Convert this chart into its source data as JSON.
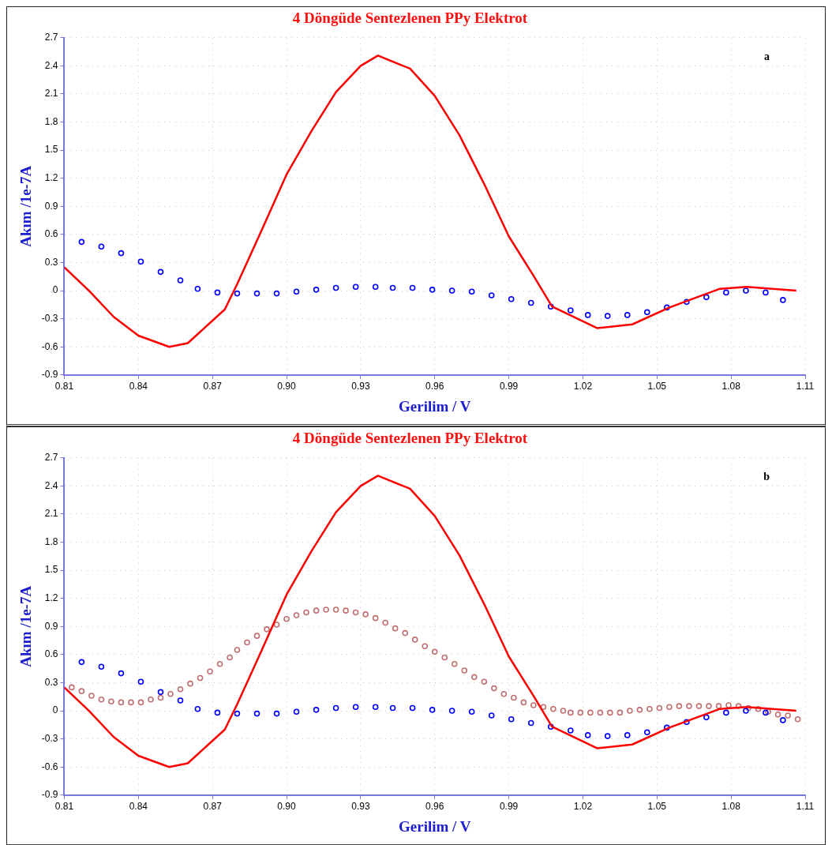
{
  "chart_data": [
    {
      "type": "line",
      "title": "4 Döngüde Sentezlenen PPy Elektrot",
      "xlabel": "Gerilim / V",
      "ylabel": "Akım /1e-7A",
      "annotations": [
        "a"
      ],
      "grid": true,
      "legend": false,
      "xlim": [
        0.81,
        1.11
      ],
      "xticks": [
        0.81,
        0.84,
        0.87,
        {
          "value": 0.9,
          "label": "0.90"
        },
        0.93,
        0.96,
        0.99,
        1.02,
        1.05,
        1.08,
        1.11
      ],
      "ylim": [
        -0.9,
        2.7
      ],
      "yticks": [
        -0.9,
        -0.6,
        -0.3,
        0,
        0.3,
        0.6,
        0.9,
        1.2,
        1.5,
        1.8,
        2.1,
        2.4,
        2.7
      ],
      "series": [
        {
          "type": "line",
          "color": "#ff0000",
          "line_style": "solid",
          "marker": "none",
          "x": [
            0.81,
            0.82,
            0.83,
            0.84,
            0.8525,
            0.86,
            0.87,
            0.875,
            0.88,
            0.89,
            0.9,
            0.91,
            0.92,
            0.93,
            0.937,
            0.95,
            0.96,
            0.97,
            0.98,
            0.99,
            1.0,
            1.0075,
            1.0257,
            1.04,
            1.055,
            1.0755,
            1.0863,
            1.1064
          ],
          "values": [
            0.25,
            0.0,
            -0.28,
            -0.48,
            -0.6,
            -0.56,
            -0.32,
            -0.2,
            0.07,
            0.65,
            1.24,
            1.7,
            2.12,
            2.4,
            2.51,
            2.37,
            2.08,
            1.66,
            1.14,
            0.58,
            0.16,
            -0.17,
            -0.4,
            -0.36,
            -0.18,
            0.02,
            0.04,
            0.0
          ]
        },
        {
          "type": "scatter",
          "color": "#0000ff",
          "marker": "circle",
          "x": [
            0.817,
            0.825,
            0.833,
            0.841,
            0.849,
            0.857,
            0.864,
            0.872,
            0.88,
            0.888,
            0.896,
            0.904,
            0.912,
            0.92,
            0.928,
            0.936,
            0.943,
            0.951,
            0.959,
            0.967,
            0.975,
            0.983,
            0.991,
            0.999,
            1.007,
            1.015,
            1.022,
            1.03,
            1.038,
            1.046,
            1.054,
            1.062,
            1.07,
            1.078,
            1.086,
            1.094,
            1.101
          ],
          "values": [
            0.52,
            0.47,
            0.4,
            0.31,
            0.2,
            0.11,
            0.02,
            -0.02,
            -0.03,
            -0.03,
            -0.03,
            -0.01,
            0.01,
            0.03,
            0.04,
            0.04,
            0.03,
            0.03,
            0.01,
            0.0,
            -0.01,
            -0.05,
            -0.09,
            -0.13,
            -0.17,
            -0.21,
            -0.26,
            -0.27,
            -0.26,
            -0.23,
            -0.18,
            -0.12,
            -0.07,
            -0.02,
            0.0,
            -0.02,
            -0.1
          ]
        }
      ]
    },
    {
      "type": "line",
      "title": "4 Döngüde Sentezlenen PPy Elektrot",
      "xlabel": "Gerilim / V",
      "ylabel": "Akım /1e-7A",
      "annotations": [
        "b"
      ],
      "grid": true,
      "legend": false,
      "xlim": [
        0.81,
        1.11
      ],
      "xticks": [
        0.81,
        0.84,
        0.87,
        {
          "value": 0.9,
          "label": "0.90"
        },
        0.93,
        0.96,
        0.99,
        1.02,
        1.05,
        1.08,
        1.11
      ],
      "ylim": [
        -0.9,
        2.7
      ],
      "yticks": [
        -0.9,
        -0.6,
        -0.3,
        0,
        0.3,
        0.6,
        0.9,
        1.2,
        1.5,
        1.8,
        2.1,
        2.4,
        2.7
      ],
      "series": [
        {
          "type": "line",
          "color": "#ff0000",
          "line_style": "solid",
          "marker": "none",
          "x": [
            0.81,
            0.82,
            0.83,
            0.84,
            0.8525,
            0.86,
            0.87,
            0.875,
            0.88,
            0.89,
            0.9,
            0.91,
            0.92,
            0.93,
            0.937,
            0.95,
            0.96,
            0.97,
            0.98,
            0.99,
            1.0,
            1.0075,
            1.0257,
            1.04,
            1.055,
            1.0755,
            1.0863,
            1.1064
          ],
          "values": [
            0.25,
            0.0,
            -0.28,
            -0.48,
            -0.6,
            -0.56,
            -0.32,
            -0.2,
            0.07,
            0.65,
            1.24,
            1.7,
            2.12,
            2.4,
            2.51,
            2.37,
            2.08,
            1.66,
            1.14,
            0.58,
            0.16,
            -0.17,
            -0.4,
            -0.36,
            -0.18,
            0.02,
            0.04,
            0.0
          ]
        },
        {
          "type": "scatter",
          "color": "#0000ff",
          "marker": "circle",
          "x": [
            0.817,
            0.825,
            0.833,
            0.841,
            0.849,
            0.857,
            0.864,
            0.872,
            0.88,
            0.888,
            0.896,
            0.904,
            0.912,
            0.92,
            0.928,
            0.936,
            0.943,
            0.951,
            0.959,
            0.967,
            0.975,
            0.983,
            0.991,
            0.999,
            1.007,
            1.015,
            1.022,
            1.03,
            1.038,
            1.046,
            1.054,
            1.062,
            1.07,
            1.078,
            1.086,
            1.094,
            1.101
          ],
          "values": [
            0.52,
            0.47,
            0.4,
            0.31,
            0.2,
            0.11,
            0.02,
            -0.02,
            -0.03,
            -0.03,
            -0.03,
            -0.01,
            0.01,
            0.03,
            0.04,
            0.04,
            0.03,
            0.03,
            0.01,
            0.0,
            -0.01,
            -0.05,
            -0.09,
            -0.13,
            -0.17,
            -0.21,
            -0.26,
            -0.27,
            -0.26,
            -0.23,
            -0.18,
            -0.12,
            -0.07,
            -0.02,
            0.0,
            -0.02,
            -0.1
          ]
        },
        {
          "type": "scatter",
          "color": "#c07070",
          "marker": "circle",
          "x": [
            0.813,
            0.817,
            0.821,
            0.825,
            0.829,
            0.833,
            0.837,
            0.841,
            0.845,
            0.849,
            0.853,
            0.857,
            0.861,
            0.865,
            0.869,
            0.873,
            0.877,
            0.88,
            0.884,
            0.888,
            0.892,
            0.896,
            0.9,
            0.904,
            0.908,
            0.912,
            0.916,
            0.92,
            0.924,
            0.928,
            0.932,
            0.936,
            0.94,
            0.944,
            0.948,
            0.952,
            0.956,
            0.96,
            0.964,
            0.968,
            0.972,
            0.976,
            0.98,
            0.984,
            0.988,
            0.992,
            0.996,
            1.0,
            1.004,
            1.008,
            1.012,
            1.015,
            1.019,
            1.023,
            1.027,
            1.031,
            1.035,
            1.039,
            1.043,
            1.047,
            1.051,
            1.055,
            1.059,
            1.063,
            1.067,
            1.071,
            1.075,
            1.079,
            1.083,
            1.087,
            1.091,
            1.095,
            1.099,
            1.103,
            1.107
          ],
          "values": [
            0.25,
            0.21,
            0.16,
            0.12,
            0.1,
            0.09,
            0.09,
            0.09,
            0.12,
            0.14,
            0.18,
            0.23,
            0.29,
            0.35,
            0.42,
            0.5,
            0.57,
            0.65,
            0.73,
            0.8,
            0.87,
            0.92,
            0.98,
            1.02,
            1.05,
            1.07,
            1.08,
            1.08,
            1.07,
            1.05,
            1.03,
            0.99,
            0.94,
            0.88,
            0.83,
            0.76,
            0.69,
            0.63,
            0.57,
            0.5,
            0.43,
            0.36,
            0.31,
            0.24,
            0.18,
            0.14,
            0.09,
            0.06,
            0.04,
            0.02,
            0.0,
            -0.02,
            -0.02,
            -0.02,
            -0.02,
            -0.02,
            -0.02,
            0.0,
            0.01,
            0.02,
            0.03,
            0.04,
            0.05,
            0.05,
            0.05,
            0.05,
            0.05,
            0.06,
            0.05,
            0.03,
            0.02,
            -0.01,
            -0.04,
            -0.05,
            -0.09
          ]
        }
      ]
    }
  ]
}
